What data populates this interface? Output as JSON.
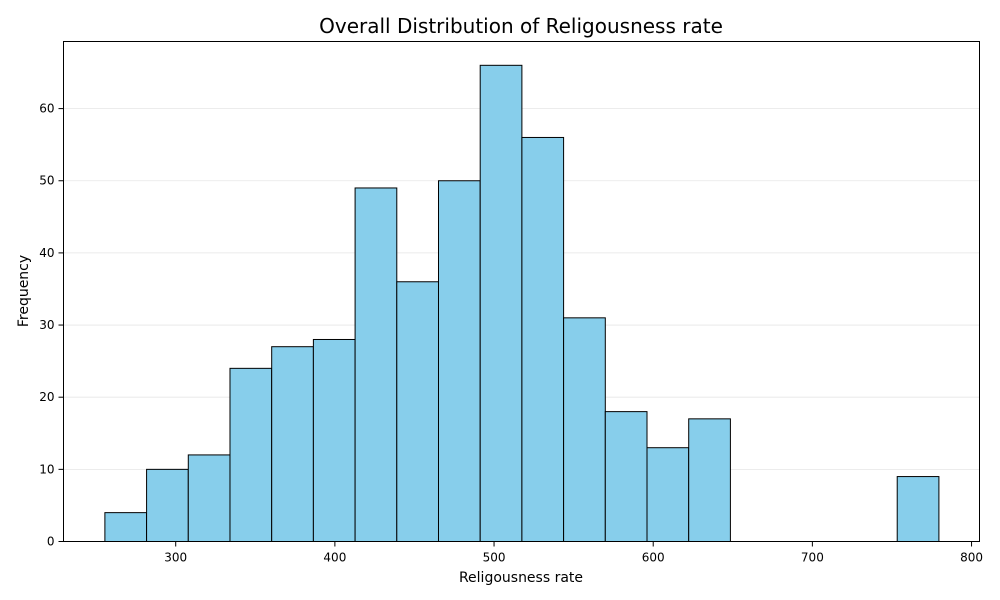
{
  "chart_data": {
    "type": "bar",
    "title": "Overall Distribution of Religousness rate",
    "xlabel": "Religousness rate",
    "ylabel": "Frequency",
    "xlim": [
      229.5,
      805.0
    ],
    "ylim": [
      0,
      69.3
    ],
    "xticks": [
      300,
      400,
      500,
      600,
      700,
      800
    ],
    "yticks": [
      0,
      10,
      20,
      30,
      40,
      50,
      60
    ],
    "bin_edges": [
      255.5,
      281.7,
      307.9,
      334.1,
      360.3,
      386.5,
      412.7,
      438.9,
      465.1,
      491.3,
      517.5,
      543.7,
      569.9,
      596.1,
      622.3,
      648.5,
      674.7,
      700.9,
      727.1,
      753.3,
      779.5
    ],
    "values": [
      4,
      10,
      12,
      24,
      27,
      28,
      49,
      36,
      50,
      66,
      56,
      31,
      18,
      13,
      17,
      0,
      0,
      0,
      0,
      9
    ],
    "bar_color": "#87CEEB",
    "edge_color": "#000000",
    "grid": "y"
  }
}
